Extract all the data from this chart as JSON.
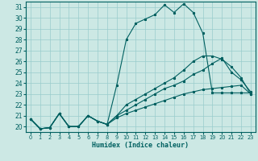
{
  "xlabel": "Humidex (Indice chaleur)",
  "bg_color": "#cce8e4",
  "line_color": "#006060",
  "grid_color": "#99cccc",
  "xlim": [
    -0.5,
    23.5
  ],
  "ylim": [
    19.5,
    31.5
  ],
  "yticks": [
    20,
    21,
    22,
    23,
    24,
    25,
    26,
    27,
    28,
    29,
    30,
    31
  ],
  "xticks": [
    0,
    1,
    2,
    3,
    4,
    5,
    6,
    7,
    8,
    9,
    10,
    11,
    12,
    13,
    14,
    15,
    16,
    17,
    18,
    19,
    20,
    21,
    22,
    23
  ],
  "series1_y": [
    20.7,
    19.8,
    19.9,
    21.2,
    20.0,
    20.0,
    21.0,
    20.5,
    20.2,
    23.8,
    28.0,
    29.5,
    29.9,
    30.3,
    31.2,
    30.5,
    31.3,
    30.5,
    28.6,
    23.1,
    23.1,
    23.1,
    23.1,
    23.1
  ],
  "series2_y": [
    20.7,
    19.8,
    19.9,
    21.2,
    20.0,
    20.0,
    21.0,
    20.5,
    20.2,
    21.0,
    22.0,
    22.5,
    23.0,
    23.5,
    24.0,
    24.5,
    25.2,
    26.0,
    26.5,
    26.5,
    26.2,
    25.5,
    24.5,
    23.0
  ],
  "series3_y": [
    20.7,
    19.8,
    19.9,
    21.2,
    20.0,
    20.0,
    21.0,
    20.5,
    20.2,
    21.0,
    21.5,
    22.0,
    22.5,
    23.0,
    23.5,
    23.8,
    24.2,
    24.8,
    25.2,
    25.8,
    26.3,
    25.0,
    24.3,
    23.2
  ],
  "series4_y": [
    20.7,
    19.8,
    19.9,
    21.2,
    20.0,
    20.0,
    21.0,
    20.5,
    20.2,
    20.8,
    21.2,
    21.5,
    21.8,
    22.1,
    22.4,
    22.7,
    23.0,
    23.2,
    23.4,
    23.5,
    23.6,
    23.7,
    23.8,
    23.0
  ]
}
